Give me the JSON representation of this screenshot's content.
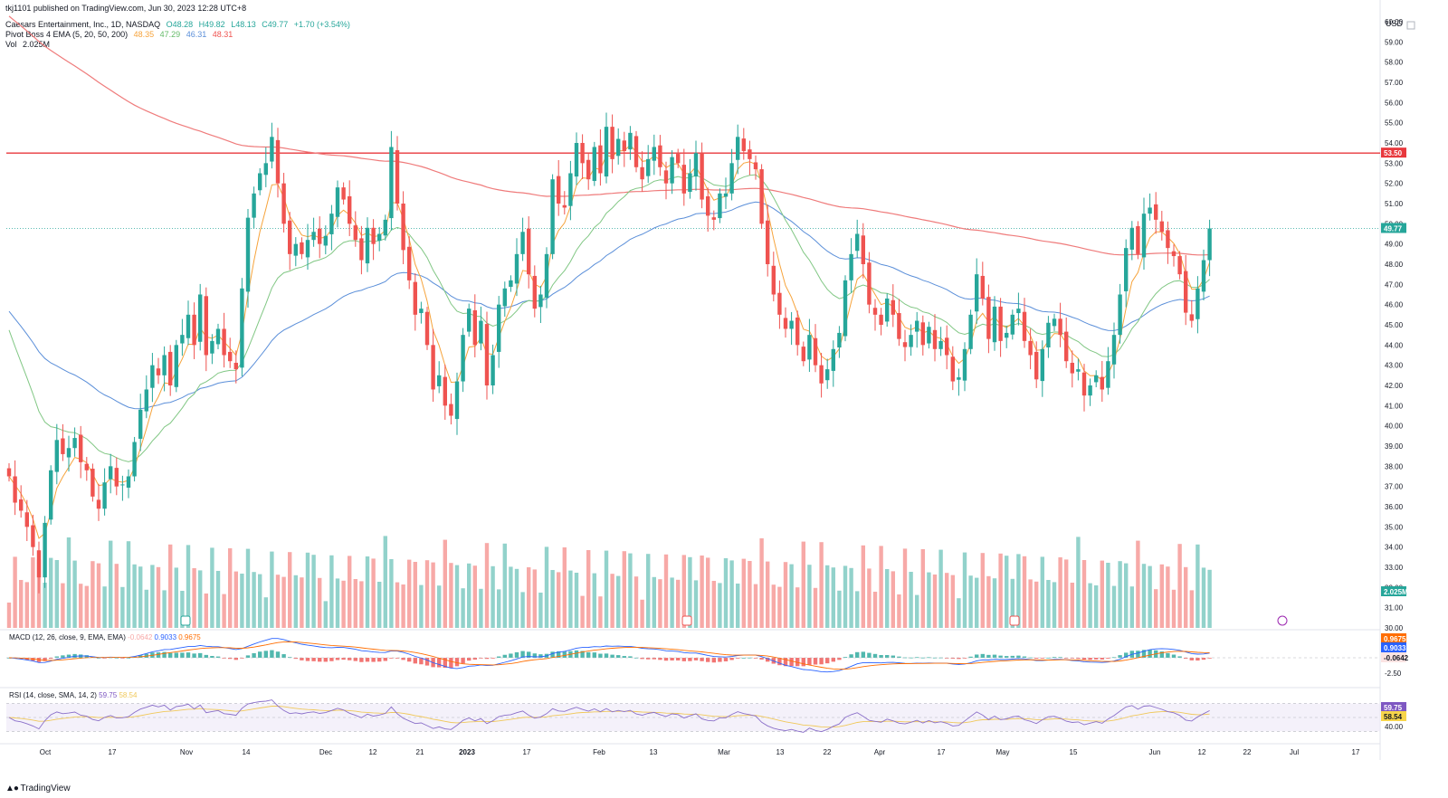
{
  "header": {
    "published": "tkj1101 published on TradingView.com, Jun 30, 2023 12:28 UTC+8",
    "symbol": "Caesars Entertainment, Inc., 1D, NASDAQ",
    "open": "O48.28",
    "high": "H49.82",
    "low": "L48.13",
    "close": "C49.77",
    "change": "+1.70 (+3.54%)",
    "ema_label": "Pivot Boss 4 EMA (5, 20, 50, 200)",
    "ema5": "48.35",
    "ema20": "47.29",
    "ema50": "46.31",
    "ema200": "48.31",
    "vol_label": "Vol",
    "vol_value": "2.025M",
    "currency": "USD"
  },
  "colors": {
    "up": "#26a69a",
    "down": "#ef5350",
    "vol_up": "#92d2cb",
    "vol_down": "#f7a9a7",
    "ema5": "#f6a33b",
    "ema20": "#81c784",
    "ema50": "#5b8fd9",
    "ema200": "#ef7b7b",
    "resistance": "#e8383d",
    "macd": "#5b7fd9",
    "signal": "#f59b42",
    "rsi": "#8a6fc9",
    "rsi_ma": "#f0c85a"
  },
  "macd": {
    "label": "MACD (12, 26, close, 9, EMA, EMA)",
    "hist": "-0.0642",
    "macd": "0.9033",
    "signal": "0.9675"
  },
  "rsi": {
    "label": "RSI (14, close, SMA, 14, 2)",
    "rsi": "59.75",
    "ma": "58.54"
  },
  "footer": {
    "brand": "TradingView"
  },
  "chart_data": {
    "type": "candlestick",
    "title": "Caesars Entertainment, Inc., 1D, NASDAQ",
    "ylim": [
      30,
      60
    ],
    "y_ticks": [
      "30.00",
      "31.00",
      "32.00",
      "33.00",
      "34.00",
      "35.00",
      "36.00",
      "37.00",
      "38.00",
      "39.00",
      "40.00",
      "41.00",
      "42.00",
      "43.00",
      "44.00",
      "45.00",
      "46.00",
      "47.00",
      "48.00",
      "49.00",
      "50.00",
      "51.00",
      "52.00",
      "53.00",
      "54.00",
      "55.00",
      "56.00",
      "57.00",
      "58.00",
      "59.00",
      "60.00"
    ],
    "x_ticks": [
      "Oct",
      "17",
      "Nov",
      "14",
      "Dec",
      "12",
      "21",
      "2023",
      "17",
      "Feb",
      "13",
      "Mar",
      "13",
      "22",
      "Apr",
      "17",
      "May",
      "15",
      "Jun",
      "12",
      "22",
      "Jul",
      "17"
    ],
    "resistance_level": 53.5,
    "resistance_label": "53.50",
    "last_price_label": "49.77",
    "last_volume_label": "2.025M",
    "closes": [
      37.5,
      36.2,
      35.8,
      35.0,
      34.0,
      32.5,
      35.2,
      37.8,
      39.3,
      38.6,
      38.9,
      39.4,
      38.2,
      37.8,
      36.5,
      35.9,
      37.2,
      38.0,
      37.0,
      37.1,
      37.5,
      39.2,
      40.8,
      41.8,
      43.0,
      42.5,
      43.5,
      42.0,
      44.0,
      44.5,
      45.5,
      44.0,
      46.5,
      43.5,
      44.2,
      44.8,
      43.5,
      43.2,
      42.8,
      46.8,
      50.3,
      51.5,
      52.5,
      53.0,
      54.3,
      52.0,
      50.0,
      48.5,
      49.0,
      48.5,
      49.2,
      49.6,
      49.0,
      49.4,
      50.5,
      51.8,
      51.2,
      50.0,
      49.2,
      48.2,
      49.8,
      49.0,
      49.5,
      50.2,
      53.8,
      51.0,
      48.7,
      47.2,
      45.5,
      45.8,
      44.0,
      41.8,
      42.5,
      41.0,
      40.5,
      42.2,
      44.5,
      45.8,
      44.0,
      45.2,
      42.0,
      43.5,
      46.0,
      46.8,
      47.2,
      48.5,
      49.6,
      47.5,
      45.8,
      46.5,
      48.5,
      52.2,
      51.0,
      50.8,
      52.5,
      54.0,
      53.0,
      52.2,
      53.8,
      52.5,
      54.8,
      53.2,
      54.2,
      53.6,
      54.5,
      52.8,
      52.2,
      53.2,
      53.8,
      52.8,
      52.0,
      53.3,
      53.0,
      51.5,
      52.5,
      53.5,
      51.2,
      50.4,
      50.2,
      51.5,
      51.5,
      53.0,
      54.3,
      53.6,
      53.2,
      52.7,
      50.0,
      48.0,
      46.5,
      45.5,
      44.8,
      45.2,
      44.0,
      43.2,
      44.5,
      43.0,
      42.1,
      42.8,
      43.8,
      44.6,
      47.2,
      48.5,
      49.5,
      48.0,
      46.0,
      45.5,
      45.0,
      46.3,
      45.5,
      44.3,
      43.9,
      44.5,
      45.2,
      44.0,
      44.9,
      43.8,
      44.2,
      43.5,
      42.2,
      42.4,
      43.8,
      45.5,
      47.5,
      46.3,
      44.3,
      45.9,
      44.2,
      44.6,
      45.5,
      45.8,
      44.2,
      43.5,
      42.3,
      43.8,
      45.1,
      45.3,
      44.5,
      43.2,
      42.6,
      42.8,
      41.5,
      42.0,
      42.5,
      41.8,
      43.2,
      44.5,
      46.5,
      48.8,
      49.8,
      48.5,
      50.5,
      50.8,
      50.2,
      49.6,
      48.8,
      48.4,
      47.5,
      45.6,
      45.2,
      46.8,
      48.2,
      49.77
    ]
  }
}
